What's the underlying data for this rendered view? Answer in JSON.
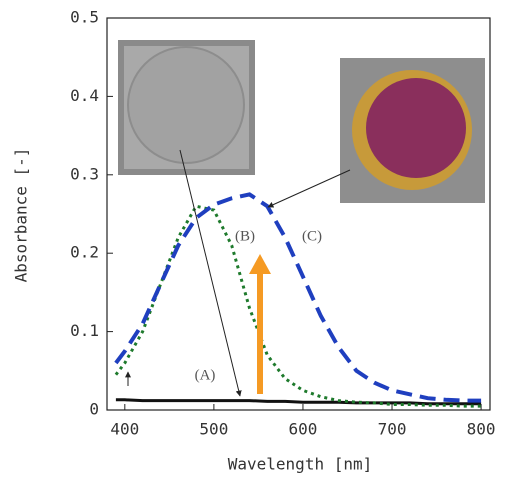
{
  "chart_data": {
    "type": "line",
    "x_label": "Wavelength [nm]",
    "y_label": "Absorbance [-]",
    "xlim": [
      380,
      810
    ],
    "ylim": [
      0,
      0.5
    ],
    "xticks": [
      400,
      500,
      600,
      700,
      800
    ],
    "yticks": [
      0,
      0.1,
      0.2,
      0.3,
      0.4,
      0.5
    ],
    "annotations": [
      "(A)",
      "(B)",
      "(C)"
    ],
    "x": [
      390,
      400,
      420,
      440,
      460,
      480,
      500,
      520,
      540,
      560,
      580,
      600,
      620,
      640,
      660,
      680,
      700,
      720,
      740,
      760,
      780,
      800
    ],
    "series": [
      {
        "color": "#111111",
        "dash": "solid",
        "values": [
          0.013,
          0.013,
          0.012,
          0.012,
          0.012,
          0.012,
          0.012,
          0.012,
          0.012,
          0.011,
          0.011,
          0.01,
          0.01,
          0.01,
          0.009,
          0.009,
          0.009,
          0.009,
          0.008,
          0.008,
          0.008,
          0.008
        ]
      },
      {
        "color": "#1e7a2c",
        "dash": "dot",
        "values": [
          0.045,
          0.06,
          0.1,
          0.16,
          0.22,
          0.26,
          0.255,
          0.21,
          0.13,
          0.07,
          0.04,
          0.025,
          0.017,
          0.012,
          0.01,
          0.009,
          0.007,
          0.007,
          0.006,
          0.006,
          0.005,
          0.005
        ]
      },
      {
        "color": "#1f3fbf",
        "dash": "dash",
        "values": [
          0.06,
          0.075,
          0.11,
          0.16,
          0.21,
          0.245,
          0.262,
          0.27,
          0.275,
          0.26,
          0.22,
          0.17,
          0.12,
          0.08,
          0.05,
          0.035,
          0.025,
          0.02,
          0.015,
          0.013,
          0.012,
          0.012
        ]
      }
    ]
  }
}
